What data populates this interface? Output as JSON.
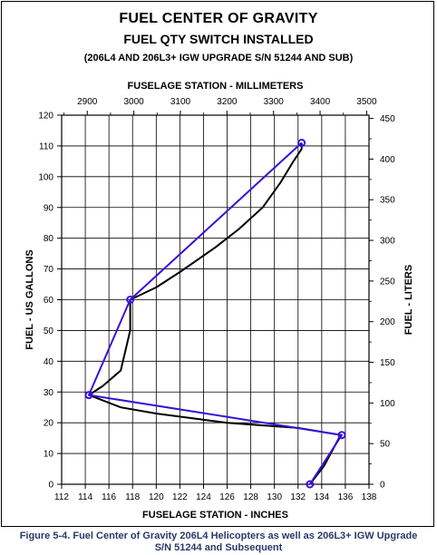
{
  "titles": {
    "main": "FUEL CENTER OF GRAVITY",
    "sub": "FUEL QTY SWITCH INSTALLED",
    "note": "(206L4 AND 206L3+ IGW UPGRADE S/N 51244 AND SUB)"
  },
  "caption": {
    "line1": "Figure 5-4.   Fuel Center of Gravity 206L4 Helicopters as well as 206L3+ IGW Upgrade",
    "line2": "S/N 51244 and Subsequent"
  },
  "chart_data": {
    "type": "line",
    "x_bottom": {
      "label": "FUSELAGE STATION  -  INCHES",
      "range": [
        112,
        138
      ],
      "ticks": [
        "112",
        "114",
        "116",
        "118",
        "120",
        "122",
        "124",
        "126",
        "128",
        "130",
        "132",
        "134",
        "136",
        "138"
      ]
    },
    "x_top": {
      "label": "FUSELAGE STATION  -  MILLIMETERS",
      "range": [
        2845,
        3505
      ],
      "ticks": [
        "2900",
        "3000",
        "3100",
        "3200",
        "3300",
        "3400",
        "3500"
      ]
    },
    "y_left": {
      "label": "FUEL  -  US GALLONS",
      "range": [
        0,
        120
      ],
      "ticks": [
        "0",
        "10",
        "20",
        "30",
        "40",
        "50",
        "60",
        "70",
        "80",
        "90",
        "100",
        "110",
        "120"
      ]
    },
    "y_right": {
      "label": "FUEL  -  LITERS",
      "range": [
        0,
        454
      ],
      "ticks": [
        "0",
        "50",
        "100",
        "150",
        "200",
        "250",
        "300",
        "350",
        "400",
        "450"
      ]
    },
    "grid": true,
    "series": [
      {
        "color": "#000000",
        "points": [
          [
            133.0,
            0
          ],
          [
            134.2,
            6
          ],
          [
            135.6,
            16
          ],
          [
            132,
            18.3
          ],
          [
            126,
            20
          ],
          [
            120,
            23
          ],
          [
            117,
            25
          ],
          [
            114.3,
            29
          ],
          [
            115.5,
            32
          ],
          [
            117,
            37
          ],
          [
            117.8,
            50
          ],
          [
            117.8,
            60
          ],
          [
            120,
            64
          ],
          [
            122,
            69
          ],
          [
            125,
            77
          ],
          [
            127,
            83
          ],
          [
            129,
            90
          ],
          [
            130.5,
            98
          ],
          [
            131.6,
            105
          ],
          [
            132.3,
            109
          ],
          [
            132.3,
            111
          ]
        ]
      },
      {
        "color": "#3a10d8",
        "markers": true,
        "points": [
          [
            133.0,
            0
          ],
          [
            135.7,
            16
          ],
          [
            114.3,
            29
          ],
          [
            117.8,
            60
          ],
          [
            132.3,
            111
          ]
        ]
      }
    ]
  }
}
